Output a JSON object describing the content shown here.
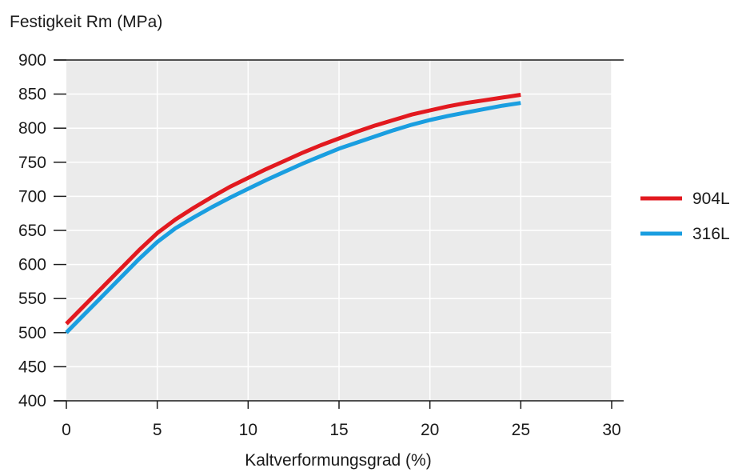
{
  "chart_data": {
    "type": "line",
    "ylabel": "Festigkeit Rm (MPa)",
    "xlabel": "Kaltverformungsgrad (%)",
    "xlim": [
      0,
      30
    ],
    "ylim": [
      400,
      900
    ],
    "xticks": [
      0,
      5,
      10,
      15,
      20,
      25,
      30
    ],
    "yticks": [
      400,
      450,
      500,
      550,
      600,
      650,
      700,
      750,
      800,
      850,
      900
    ],
    "grid": true,
    "legend_position": "right",
    "series": [
      {
        "name": "904L",
        "color": "#e2191f",
        "x": [
          0,
          1,
          2,
          3,
          4,
          5,
          6,
          7,
          8,
          9,
          10,
          11,
          12,
          13,
          14,
          15,
          16,
          17,
          18,
          19,
          20,
          21,
          22,
          23,
          24,
          25
        ],
        "y": [
          513,
          540,
          567,
          594,
          621,
          646,
          666,
          683,
          699,
          714,
          727,
          740,
          752,
          764,
          775,
          785,
          795,
          804,
          812,
          820,
          826,
          832,
          837,
          841,
          845,
          849
        ]
      },
      {
        "name": "316L",
        "color": "#1a9ee0",
        "x": [
          0,
          1,
          2,
          3,
          4,
          5,
          6,
          7,
          8,
          9,
          10,
          11,
          12,
          13,
          14,
          15,
          16,
          17,
          18,
          19,
          20,
          21,
          22,
          23,
          24,
          25
        ],
        "y": [
          500,
          527,
          554,
          581,
          608,
          633,
          653,
          669,
          684,
          698,
          711,
          724,
          736,
          748,
          759,
          770,
          779,
          788,
          797,
          805,
          812,
          818,
          823,
          828,
          833,
          837
        ]
      }
    ]
  }
}
